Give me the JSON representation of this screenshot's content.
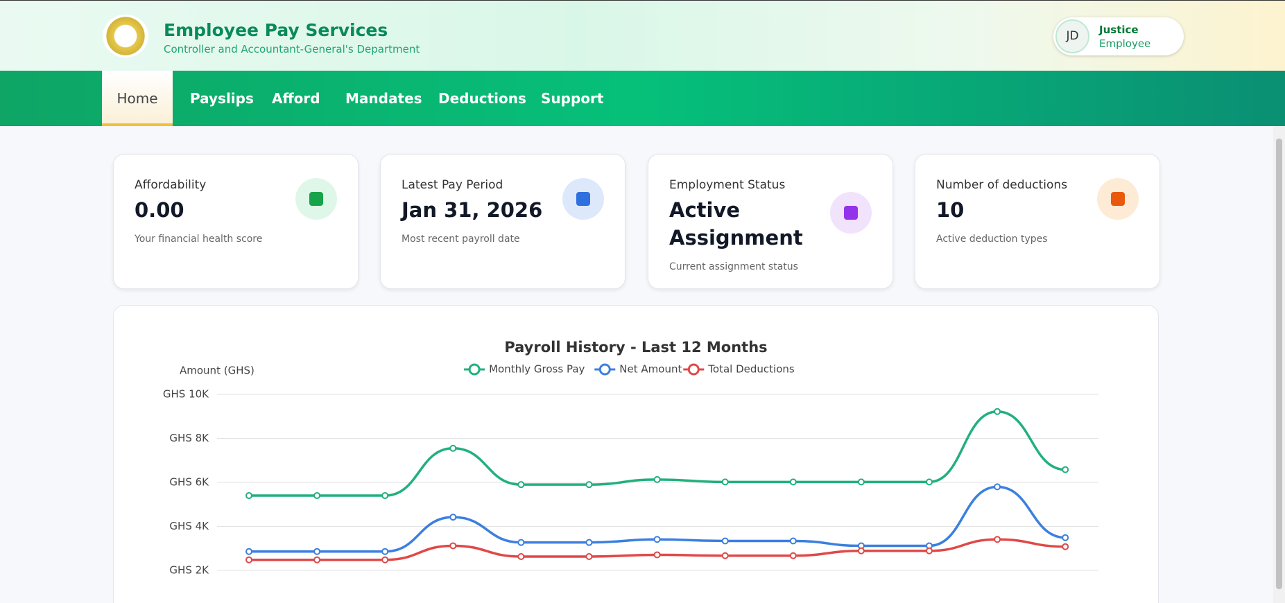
{
  "header": {
    "title": "Employee Pay Services",
    "subtitle": "Controller and Accountant-General's Department",
    "user": {
      "initials": "JD",
      "name": "Justice",
      "role": "Employee"
    }
  },
  "nav": [
    "Home",
    "Payslips",
    "Afford",
    "Mandates",
    "Deductions",
    "Support"
  ],
  "cards": [
    {
      "label": "Affordability",
      "value": "0.00",
      "note": "Your financial health score"
    },
    {
      "label": "Latest Pay Period",
      "value": "Jan 31, 2026",
      "note": "Most recent payroll date"
    },
    {
      "label": "Employment Status",
      "value": "Active Assignment",
      "note": "Current assignment status"
    },
    {
      "label": "Number of deductions",
      "value": "10",
      "note": "Active deduction types"
    }
  ],
  "chart_data": {
    "type": "line",
    "title": "Payroll History - Last 12 Months",
    "y_label": "Amount (GHS)",
    "ylim": [
      0,
      10000
    ],
    "yticks": [
      {
        "value": 2000,
        "label": "GHS 2K"
      },
      {
        "value": 4000,
        "label": "GHS 4K"
      },
      {
        "value": 6000,
        "label": "GHS 6K"
      },
      {
        "value": 8000,
        "label": "GHS 8K"
      },
      {
        "value": 10000,
        "label": "GHS 10K"
      }
    ],
    "grid": true,
    "series": [
      {
        "name": "Monthly Gross Pay",
        "color": "#22b07d",
        "values": [
          5400,
          5400,
          5400,
          7550,
          5900,
          5900,
          6130,
          6020,
          6020,
          6020,
          6020,
          9220,
          6580
        ]
      },
      {
        "name": "Net Amount",
        "color": "#3b7fe0",
        "values": [
          2860,
          2860,
          2860,
          4420,
          3270,
          3270,
          3410,
          3340,
          3340,
          3120,
          3120,
          5800,
          3490
        ]
      },
      {
        "name": "Total Deductions",
        "color": "#e04848",
        "values": [
          2480,
          2480,
          2480,
          3120,
          2630,
          2630,
          2710,
          2670,
          2670,
          2890,
          2890,
          3410,
          3080
        ]
      }
    ]
  }
}
